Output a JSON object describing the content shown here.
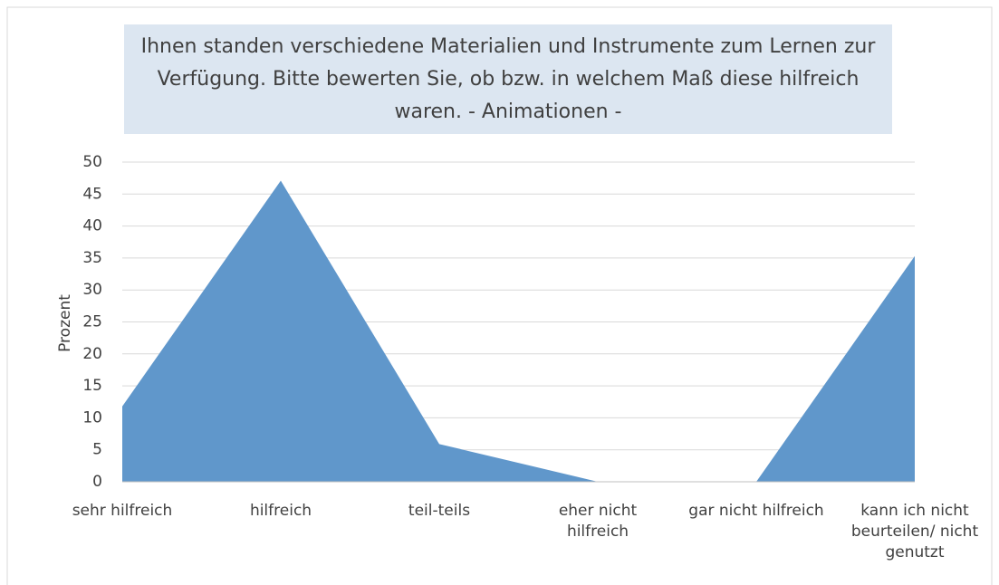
{
  "chart_data": {
    "type": "area",
    "title": "Ihnen standen verschiedene Materialien und Instrumente zum Lernen zur Verfügung. Bitte bewerten Sie, ob bzw. in welchem Maß diese hilfreich waren. - Animationen -",
    "y_label": "Prozent",
    "categories": [
      "sehr hilfreich",
      "hilfreich",
      "teil-teils",
      "eher nicht hilfreich",
      "gar nicht hilfreich",
      "kann ich nicht beurteilen/ nicht genutzt"
    ],
    "values": [
      11.8,
      47.1,
      5.9,
      0,
      0,
      35.3
    ],
    "color": "#6097cb",
    "ylim": [
      0,
      50
    ],
    "yticks": [
      0,
      5,
      10,
      15,
      20,
      25,
      30,
      35,
      40,
      45,
      50
    ],
    "grid": true
  }
}
